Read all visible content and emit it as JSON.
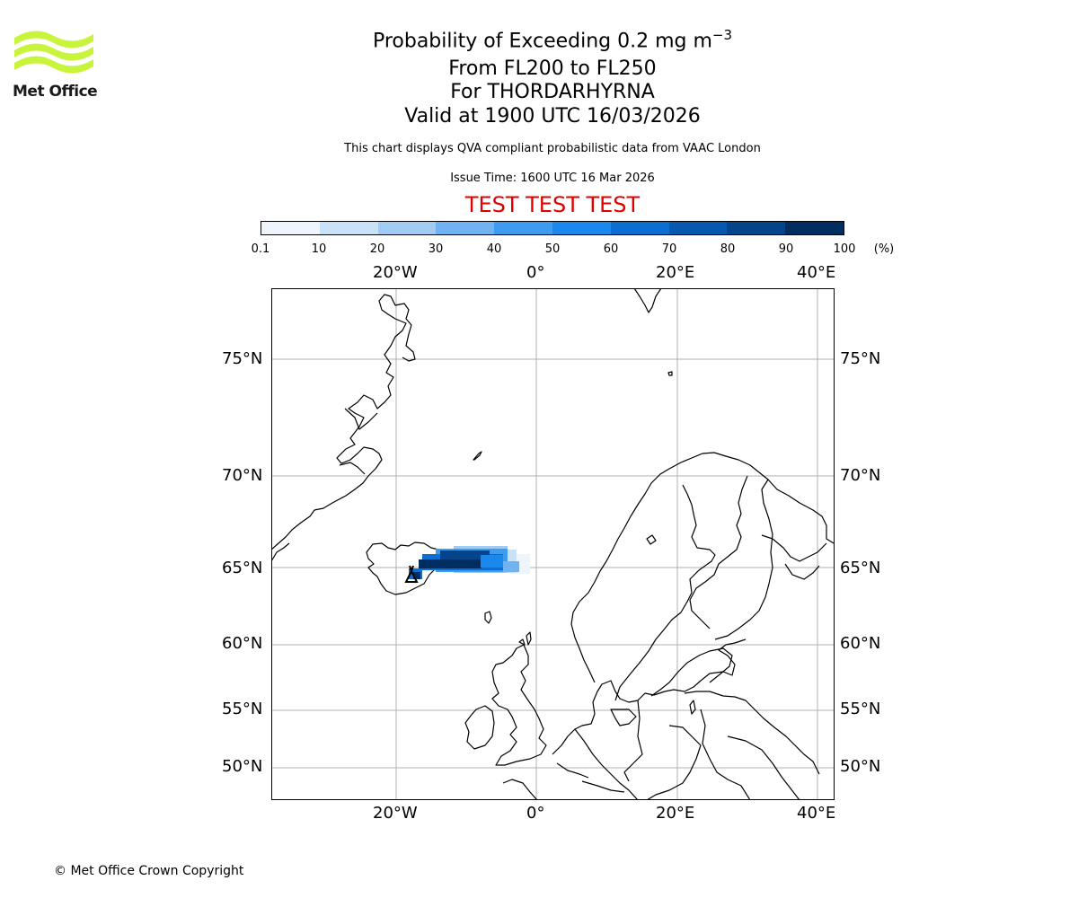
{
  "brand": {
    "name": "Met Office",
    "logo_color": "#c8f53c"
  },
  "header": {
    "title_prefix": "Probability of Exceeding 0.2 mg m",
    "title_exponent": "−3",
    "levels": "From FL200 to FL250",
    "volcano": "For THORDARHYRNA",
    "valid": "Valid at 1900 UTC 16/03/2026",
    "description": "This chart displays QVA compliant probabilistic data from VAAC London",
    "issue_time": "Issue Time: 1600 UTC 16 Mar 2026",
    "test_banner": "TEST TEST TEST",
    "test_color": "#e00000"
  },
  "colorbar": {
    "ticks": [
      "0.1",
      "10",
      "20",
      "30",
      "40",
      "50",
      "60",
      "70",
      "80",
      "90",
      "100"
    ],
    "unit": "(%)",
    "colors": [
      "#eef5fd",
      "#c9e2f8",
      "#9fcbf4",
      "#6fb3f2",
      "#3f9bf0",
      "#1a87ec",
      "#0a6fd0",
      "#0659ae",
      "#03448a",
      "#022d60"
    ]
  },
  "map": {
    "lon_labels": [
      "20°W",
      "0°",
      "20°E",
      "40°E"
    ],
    "lat_labels": [
      "75°N",
      "70°N",
      "65°N",
      "60°N",
      "55°N",
      "50°N"
    ],
    "volcano_marker": "volcano",
    "plume_probability_pct": [
      10,
      30,
      50,
      70,
      90,
      100
    ]
  },
  "footer": {
    "copyright": "© Met Office Crown Copyright"
  }
}
